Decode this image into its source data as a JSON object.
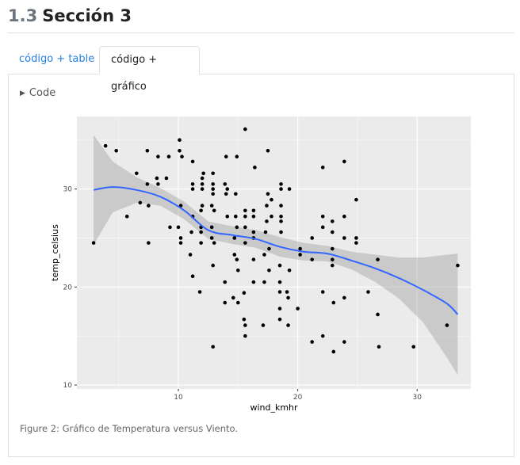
{
  "section": {
    "number": "1.3",
    "title": "Sección 3"
  },
  "tabs": [
    {
      "label": "código + table",
      "active": false
    },
    {
      "label": "código + gráfico",
      "active": true
    }
  ],
  "code_toggle": {
    "label": "Code"
  },
  "caption": "Figure 2: Gráfico de Temperatura versus Viento.",
  "chart_data": {
    "type": "scatter",
    "xlabel": "wind_kmhr",
    "ylabel": "temp_celsius",
    "xlim": [
      1.5,
      34.5
    ],
    "ylim": [
      9.6,
      37.4
    ],
    "xticks": [
      10,
      20,
      30
    ],
    "yticks": [
      10,
      20,
      30
    ],
    "grid": true,
    "points": [
      [
        2.9,
        24.5
      ],
      [
        3.9,
        34.4
      ],
      [
        4.8,
        33.9
      ],
      [
        5.7,
        27.2
      ],
      [
        6.5,
        31.6
      ],
      [
        6.8,
        28.6
      ],
      [
        7.4,
        30.5
      ],
      [
        7.4,
        33.9
      ],
      [
        7.5,
        28.3
      ],
      [
        7.5,
        24.5
      ],
      [
        8.2,
        31.1
      ],
      [
        8.3,
        30.5
      ],
      [
        8.3,
        33.3
      ],
      [
        9.0,
        31.1
      ],
      [
        9.2,
        33.3
      ],
      [
        9.3,
        26.1
      ],
      [
        10.0,
        26.1
      ],
      [
        10.1,
        35.0
      ],
      [
        10.1,
        33.9
      ],
      [
        10.2,
        28.3
      ],
      [
        10.2,
        25.0
      ],
      [
        10.3,
        33.3
      ],
      [
        10.2,
        24.5
      ],
      [
        11.0,
        23.3
      ],
      [
        11.1,
        25.6
      ],
      [
        11.2,
        32.8
      ],
      [
        11.2,
        30.5
      ],
      [
        11.2,
        30.0
      ],
      [
        11.2,
        27.2
      ],
      [
        11.2,
        21.1
      ],
      [
        11.8,
        19.5
      ],
      [
        11.9,
        24.5
      ],
      [
        11.9,
        25.6
      ],
      [
        11.9,
        26.1
      ],
      [
        11.9,
        27.8
      ],
      [
        12.0,
        28.3
      ],
      [
        12.0,
        30.0
      ],
      [
        12.0,
        30.5
      ],
      [
        12.0,
        31.1
      ],
      [
        12.1,
        31.6
      ],
      [
        12.8,
        25.0
      ],
      [
        12.8,
        26.1
      ],
      [
        12.8,
        28.3
      ],
      [
        12.9,
        30.0
      ],
      [
        12.9,
        29.5
      ],
      [
        12.9,
        30.5
      ],
      [
        12.9,
        31.6
      ],
      [
        12.9,
        22.2
      ],
      [
        12.9,
        13.9
      ],
      [
        13.0,
        24.5
      ],
      [
        13.0,
        27.8
      ],
      [
        13.9,
        18.4
      ],
      [
        13.9,
        20.5
      ],
      [
        13.9,
        30.5
      ],
      [
        14.0,
        29.5
      ],
      [
        14.0,
        33.3
      ],
      [
        14.1,
        30.0
      ],
      [
        14.1,
        27.2
      ],
      [
        14.6,
        18.9
      ],
      [
        14.7,
        23.3
      ],
      [
        14.7,
        25.0
      ],
      [
        14.8,
        27.2
      ],
      [
        14.8,
        29.5
      ],
      [
        14.9,
        33.3
      ],
      [
        14.9,
        26.1
      ],
      [
        14.9,
        22.8
      ],
      [
        15.0,
        21.7
      ],
      [
        15.0,
        18.4
      ],
      [
        15.5,
        19.4
      ],
      [
        15.5,
        16.7
      ],
      [
        15.6,
        15.0
      ],
      [
        15.6,
        16.1
      ],
      [
        15.6,
        24.5
      ],
      [
        15.6,
        26.1
      ],
      [
        15.6,
        27.2
      ],
      [
        15.6,
        27.8
      ],
      [
        15.6,
        36.1
      ],
      [
        16.3,
        20.5
      ],
      [
        16.3,
        22.8
      ],
      [
        16.3,
        25.0
      ],
      [
        16.3,
        25.6
      ],
      [
        16.3,
        27.2
      ],
      [
        16.3,
        27.8
      ],
      [
        16.4,
        32.2
      ],
      [
        17.1,
        16.1
      ],
      [
        17.2,
        20.5
      ],
      [
        17.2,
        23.3
      ],
      [
        17.3,
        25.6
      ],
      [
        17.4,
        26.7
      ],
      [
        17.4,
        28.3
      ],
      [
        17.5,
        29.5
      ],
      [
        17.5,
        33.9
      ],
      [
        17.6,
        23.9
      ],
      [
        17.6,
        21.7
      ],
      [
        17.8,
        27.2
      ],
      [
        17.8,
        28.9
      ],
      [
        18.5,
        22.2
      ],
      [
        18.5,
        20.5
      ],
      [
        18.5,
        19.5
      ],
      [
        18.5,
        17.8
      ],
      [
        18.5,
        16.7
      ],
      [
        18.6,
        25.6
      ],
      [
        18.6,
        26.7
      ],
      [
        18.6,
        27.2
      ],
      [
        18.6,
        28.3
      ],
      [
        18.6,
        30.0
      ],
      [
        18.6,
        30.5
      ],
      [
        19.1,
        19.5
      ],
      [
        19.2,
        18.9
      ],
      [
        19.2,
        16.1
      ],
      [
        19.3,
        21.7
      ],
      [
        19.3,
        30.0
      ],
      [
        20.0,
        17.8
      ],
      [
        20.2,
        23.3
      ],
      [
        20.2,
        23.9
      ],
      [
        21.2,
        25.0
      ],
      [
        21.2,
        22.8
      ],
      [
        21.2,
        14.4
      ],
      [
        22.1,
        19.5
      ],
      [
        22.1,
        26.1
      ],
      [
        22.1,
        27.2
      ],
      [
        22.1,
        32.2
      ],
      [
        22.1,
        15.0
      ],
      [
        22.9,
        25.6
      ],
      [
        22.9,
        26.7
      ],
      [
        22.9,
        23.9
      ],
      [
        22.9,
        22.8
      ],
      [
        22.9,
        22.2
      ],
      [
        23.0,
        18.4
      ],
      [
        23.0,
        13.4
      ],
      [
        23.9,
        32.8
      ],
      [
        23.9,
        27.2
      ],
      [
        23.9,
        25.0
      ],
      [
        23.9,
        18.9
      ],
      [
        23.9,
        14.4
      ],
      [
        24.9,
        28.9
      ],
      [
        24.9,
        25.0
      ],
      [
        24.9,
        24.5
      ],
      [
        25.9,
        19.5
      ],
      [
        26.7,
        22.8
      ],
      [
        26.7,
        17.2
      ],
      [
        26.8,
        13.9
      ],
      [
        29.7,
        13.9
      ],
      [
        32.5,
        16.1
      ],
      [
        33.4,
        22.2
      ]
    ],
    "smooth": {
      "method": "loess",
      "x": [
        2.9,
        4.5,
        6.5,
        8.5,
        10.5,
        12.5,
        14.5,
        16.5,
        18.5,
        20.5,
        22.5,
        24.5,
        26.5,
        28.5,
        30.5,
        32.5,
        33.4
      ],
      "y": [
        29.9,
        30.2,
        29.9,
        29.2,
        27.8,
        25.8,
        25.3,
        24.9,
        24.1,
        23.6,
        23.4,
        22.7,
        21.9,
        20.9,
        19.7,
        18.3,
        17.2
      ],
      "lower": [
        24.3,
        27.6,
        28.6,
        28.3,
        26.9,
        24.9,
        24.4,
        24.0,
        23.1,
        22.7,
        22.6,
        21.8,
        20.5,
        18.8,
        16.4,
        12.8,
        11.0
      ],
      "upper": [
        35.5,
        32.8,
        31.2,
        30.1,
        28.7,
        26.7,
        26.2,
        25.8,
        25.1,
        24.5,
        24.2,
        23.6,
        23.3,
        23.0,
        23.0,
        23.3,
        23.4
      ]
    }
  }
}
